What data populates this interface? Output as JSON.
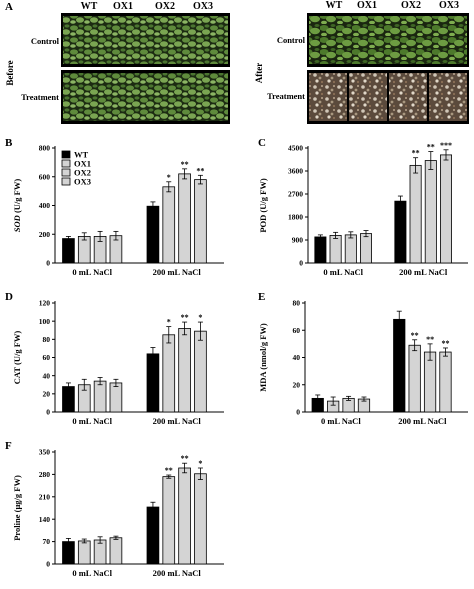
{
  "photos": {
    "panel_letter": "A",
    "left_side_label": "Before",
    "right_side_label": "After",
    "genotypes": [
      "WT",
      "OX1",
      "OX2",
      "OX3"
    ],
    "row_labels": [
      "Control",
      "Treatment"
    ]
  },
  "legend": [
    "WT",
    "OX1",
    "OX2",
    "OX3"
  ],
  "colors": {
    "wt": "#000000",
    "ox": "#d4d4d4",
    "bar_stroke": "#000000"
  },
  "chart_data": [
    {
      "id": "sod",
      "letter": "B",
      "type": "bar",
      "ylabel_prefix": "SOD",
      "ylabel_rest": " (U/g FW)",
      "ylabel_italic_prefix": true,
      "ylim": [
        0,
        800
      ],
      "ticks": [
        0,
        200,
        400,
        600,
        800
      ],
      "categories": [
        "0 mL NaCl",
        "200 mL NaCl"
      ],
      "series_names": [
        "WT",
        "OX1",
        "OX2",
        "OX3"
      ],
      "values": [
        [
          170,
          185,
          185,
          190
        ],
        [
          395,
          530,
          620,
          580
        ]
      ],
      "errors": [
        [
          15,
          25,
          35,
          30
        ],
        [
          30,
          35,
          35,
          30
        ]
      ],
      "sig": [
        [
          "",
          "",
          "",
          ""
        ],
        [
          "",
          "*",
          "**",
          "**"
        ]
      ]
    },
    {
      "id": "pod",
      "letter": "C",
      "type": "bar",
      "ylabel_prefix": "POD",
      "ylabel_rest": " (U/g FW)",
      "ylabel_italic_prefix": false,
      "ylim": [
        0,
        4500
      ],
      "ticks": [
        0,
        900,
        1800,
        2700,
        3600,
        4500
      ],
      "categories": [
        "0 mL NaCl",
        "200 mL NaCl"
      ],
      "series_names": [
        "WT",
        "OX1",
        "OX2",
        "OX3"
      ],
      "values": [
        [
          1020,
          1080,
          1100,
          1150
        ],
        [
          2420,
          3820,
          4010,
          4230
        ]
      ],
      "errors": [
        [
          80,
          120,
          120,
          120
        ],
        [
          200,
          300,
          350,
          200
        ]
      ],
      "sig": [
        [
          "",
          "",
          "",
          ""
        ],
        [
          "",
          "**",
          "**",
          "***"
        ]
      ]
    },
    {
      "id": "cat",
      "letter": "D",
      "type": "bar",
      "ylabel_prefix": "CAT",
      "ylabel_rest": " (U/g FW)",
      "ylabel_italic_prefix": false,
      "ylim": [
        0,
        120
      ],
      "ticks": [
        0,
        20,
        40,
        60,
        80,
        100,
        120
      ],
      "categories": [
        "0 mL NaCl",
        "200 mL NaCl"
      ],
      "series_names": [
        "WT",
        "OX1",
        "OX2",
        "OX3"
      ],
      "values": [
        [
          28,
          30,
          34,
          32
        ],
        [
          64,
          85,
          92,
          89
        ]
      ],
      "errors": [
        [
          4,
          6,
          4,
          4
        ],
        [
          7,
          9,
          7,
          10
        ]
      ],
      "sig": [
        [
          "",
          "",
          "",
          ""
        ],
        [
          "",
          "*",
          "**",
          "*"
        ]
      ]
    },
    {
      "id": "mda",
      "letter": "E",
      "type": "bar",
      "ylabel_prefix": "MDA",
      "ylabel_rest": " (nmol/g FW)",
      "ylabel_italic_prefix": false,
      "ylim": [
        0,
        80
      ],
      "ticks": [
        0,
        20,
        40,
        60,
        80
      ],
      "categories": [
        "0 mL NaCl",
        "200 mL NaCl"
      ],
      "series_names": [
        "WT",
        "OX1",
        "OX2",
        "OX3"
      ],
      "values": [
        [
          10,
          8,
          10,
          9.5
        ],
        [
          68,
          49,
          44,
          44
        ]
      ],
      "errors": [
        [
          2.5,
          3,
          1.5,
          1.5
        ],
        [
          6,
          4,
          6,
          3
        ]
      ],
      "sig": [
        [
          "",
          "",
          "",
          ""
        ],
        [
          "",
          "**",
          "**",
          "**"
        ]
      ]
    },
    {
      "id": "proline",
      "letter": "F",
      "type": "bar",
      "ylabel_prefix": "Proline",
      "ylabel_rest": " (μg/g FW)",
      "ylabel_italic_prefix": false,
      "ylim": [
        0,
        350
      ],
      "ticks": [
        0,
        70,
        140,
        210,
        280,
        350
      ],
      "categories": [
        "0 mL NaCl",
        "200 mL NaCl"
      ],
      "series_names": [
        "WT",
        "OX1",
        "OX2",
        "OX3"
      ],
      "values": [
        [
          70,
          72,
          75,
          82
        ],
        [
          178,
          273,
          300,
          282
        ]
      ],
      "errors": [
        [
          10,
          6,
          10,
          5
        ],
        [
          15,
          5,
          15,
          18
        ]
      ],
      "sig": [
        [
          "",
          "",
          "",
          ""
        ],
        [
          "",
          "**",
          "**",
          "*"
        ]
      ]
    }
  ]
}
